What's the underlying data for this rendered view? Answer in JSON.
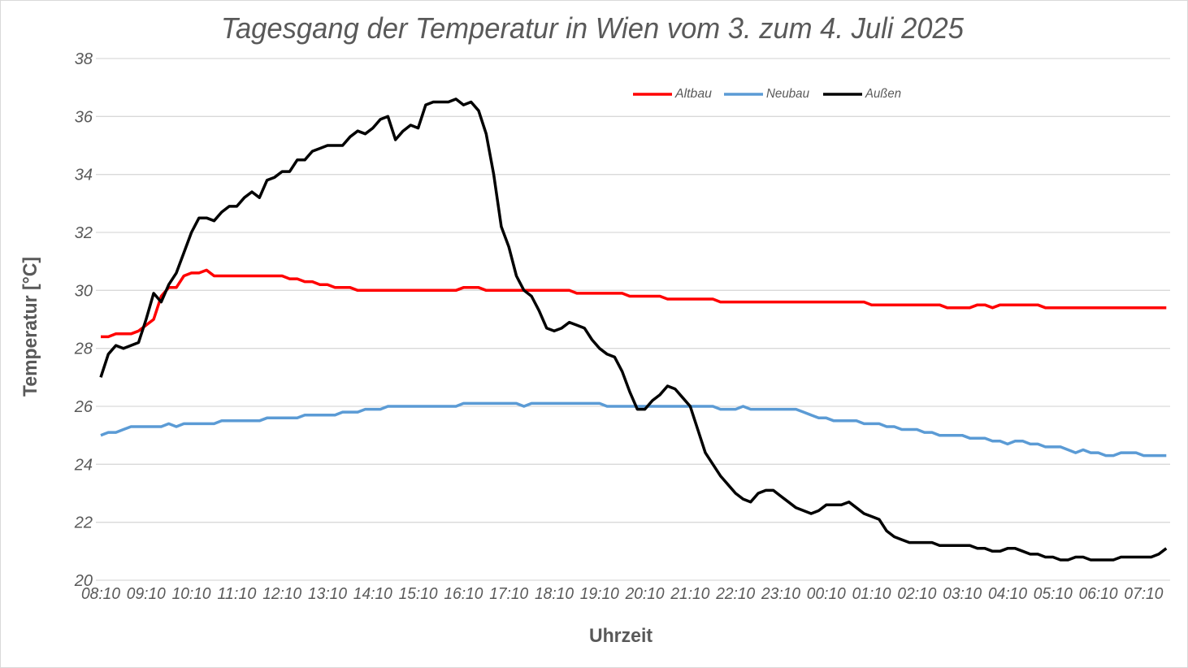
{
  "chart_data": {
    "type": "line",
    "title": "Tagesgang der Temperatur in Wien vom 3. zum 4. Juli 2025",
    "xlabel": "Uhrzeit",
    "ylabel": "Temperatur [°C]",
    "ylim": [
      20,
      38
    ],
    "yticks": [
      "20",
      "22",
      "24",
      "26",
      "28",
      "30",
      "32",
      "34",
      "36",
      "38"
    ],
    "xticks": [
      "08:10",
      "09:10",
      "10:10",
      "11:10",
      "12:10",
      "13:10",
      "14:10",
      "15:10",
      "16:10",
      "17:10",
      "18:10",
      "19:10",
      "20:10",
      "21:10",
      "22:10",
      "23:10",
      "00:10",
      "01:10",
      "02:10",
      "03:10",
      "04:10",
      "05:10",
      "06:10",
      "07:10"
    ],
    "grid": "horizontal",
    "legend_position": "top-right",
    "x": [
      "08:10",
      "08:20",
      "08:30",
      "08:40",
      "08:50",
      "09:00",
      "09:10",
      "09:20",
      "09:30",
      "09:40",
      "09:50",
      "10:00",
      "10:10",
      "10:20",
      "10:30",
      "10:40",
      "10:50",
      "11:00",
      "11:10",
      "11:20",
      "11:30",
      "11:40",
      "11:50",
      "12:00",
      "12:10",
      "12:20",
      "12:30",
      "12:40",
      "12:50",
      "13:00",
      "13:10",
      "13:20",
      "13:30",
      "13:40",
      "13:50",
      "14:00",
      "14:10",
      "14:20",
      "14:30",
      "14:40",
      "14:50",
      "15:00",
      "15:10",
      "15:20",
      "15:30",
      "15:40",
      "15:50",
      "16:00",
      "16:10",
      "16:20",
      "16:30",
      "16:40",
      "16:50",
      "17:00",
      "17:10",
      "17:20",
      "17:30",
      "17:40",
      "17:50",
      "18:00",
      "18:10",
      "18:20",
      "18:30",
      "18:40",
      "18:50",
      "19:00",
      "19:10",
      "19:20",
      "19:30",
      "19:40",
      "19:50",
      "20:00",
      "20:10",
      "20:20",
      "20:30",
      "20:40",
      "20:50",
      "21:00",
      "21:10",
      "21:20",
      "21:30",
      "21:40",
      "21:50",
      "22:00",
      "22:10",
      "22:20",
      "22:30",
      "22:40",
      "22:50",
      "23:00",
      "23:10",
      "23:20",
      "23:30",
      "23:40",
      "23:50",
      "00:00",
      "00:10",
      "00:20",
      "00:30",
      "00:40",
      "00:50",
      "01:00",
      "01:10",
      "01:20",
      "01:30",
      "01:40",
      "01:50",
      "02:00",
      "02:10",
      "02:20",
      "02:30",
      "02:40",
      "02:50",
      "03:00",
      "03:10",
      "03:20",
      "03:30",
      "03:40",
      "03:50",
      "04:00",
      "04:10",
      "04:20",
      "04:30",
      "04:40",
      "04:50",
      "05:00",
      "05:10",
      "05:20",
      "05:30",
      "05:40",
      "05:50",
      "06:00",
      "06:10",
      "06:20",
      "06:30",
      "06:40",
      "06:50",
      "07:00",
      "07:10",
      "07:20",
      "07:30",
      "07:40"
    ],
    "series": [
      {
        "name": "Altbau",
        "color": "#ff0000",
        "values": [
          28.4,
          28.4,
          28.5,
          28.5,
          28.5,
          28.6,
          28.8,
          29.0,
          29.8,
          30.1,
          30.1,
          30.5,
          30.6,
          30.6,
          30.7,
          30.5,
          30.5,
          30.5,
          30.5,
          30.5,
          30.5,
          30.5,
          30.5,
          30.5,
          30.5,
          30.4,
          30.4,
          30.3,
          30.3,
          30.2,
          30.2,
          30.1,
          30.1,
          30.1,
          30.0,
          30.0,
          30.0,
          30.0,
          30.0,
          30.0,
          30.0,
          30.0,
          30.0,
          30.0,
          30.0,
          30.0,
          30.0,
          30.0,
          30.1,
          30.1,
          30.1,
          30.0,
          30.0,
          30.0,
          30.0,
          30.0,
          30.0,
          30.0,
          30.0,
          30.0,
          30.0,
          30.0,
          30.0,
          29.9,
          29.9,
          29.9,
          29.9,
          29.9,
          29.9,
          29.9,
          29.8,
          29.8,
          29.8,
          29.8,
          29.8,
          29.7,
          29.7,
          29.7,
          29.7,
          29.7,
          29.7,
          29.7,
          29.6,
          29.6,
          29.6,
          29.6,
          29.6,
          29.6,
          29.6,
          29.6,
          29.6,
          29.6,
          29.6,
          29.6,
          29.6,
          29.6,
          29.6,
          29.6,
          29.6,
          29.6,
          29.6,
          29.6,
          29.5,
          29.5,
          29.5,
          29.5,
          29.5,
          29.5,
          29.5,
          29.5,
          29.5,
          29.5,
          29.4,
          29.4,
          29.4,
          29.4,
          29.5,
          29.5,
          29.4,
          29.5,
          29.5,
          29.5,
          29.5,
          29.5,
          29.5,
          29.4,
          29.4,
          29.4,
          29.4,
          29.4,
          29.4,
          29.4,
          29.4,
          29.4,
          29.4,
          29.4,
          29.4,
          29.4,
          29.4,
          29.4,
          29.4,
          29.4
        ]
      },
      {
        "name": "Neubau",
        "color": "#5b9bd5",
        "values": [
          25.0,
          25.1,
          25.1,
          25.2,
          25.3,
          25.3,
          25.3,
          25.3,
          25.3,
          25.4,
          25.3,
          25.4,
          25.4,
          25.4,
          25.4,
          25.4,
          25.5,
          25.5,
          25.5,
          25.5,
          25.5,
          25.5,
          25.6,
          25.6,
          25.6,
          25.6,
          25.6,
          25.7,
          25.7,
          25.7,
          25.7,
          25.7,
          25.8,
          25.8,
          25.8,
          25.9,
          25.9,
          25.9,
          26.0,
          26.0,
          26.0,
          26.0,
          26.0,
          26.0,
          26.0,
          26.0,
          26.0,
          26.0,
          26.1,
          26.1,
          26.1,
          26.1,
          26.1,
          26.1,
          26.1,
          26.1,
          26.0,
          26.1,
          26.1,
          26.1,
          26.1,
          26.1,
          26.1,
          26.1,
          26.1,
          26.1,
          26.1,
          26.0,
          26.0,
          26.0,
          26.0,
          26.0,
          26.0,
          26.0,
          26.0,
          26.0,
          26.0,
          26.0,
          26.0,
          26.0,
          26.0,
          26.0,
          25.9,
          25.9,
          25.9,
          26.0,
          25.9,
          25.9,
          25.9,
          25.9,
          25.9,
          25.9,
          25.9,
          25.8,
          25.7,
          25.6,
          25.6,
          25.5,
          25.5,
          25.5,
          25.5,
          25.4,
          25.4,
          25.4,
          25.3,
          25.3,
          25.2,
          25.2,
          25.2,
          25.1,
          25.1,
          25.0,
          25.0,
          25.0,
          25.0,
          24.9,
          24.9,
          24.9,
          24.8,
          24.8,
          24.7,
          24.8,
          24.8,
          24.7,
          24.7,
          24.6,
          24.6,
          24.6,
          24.5,
          24.4,
          24.5,
          24.4,
          24.4,
          24.3,
          24.3,
          24.4,
          24.4,
          24.4,
          24.3,
          24.3,
          24.3,
          24.3
        ]
      },
      {
        "name": "Außen",
        "color": "#000000",
        "values": [
          27.0,
          27.8,
          28.1,
          28.0,
          28.1,
          28.2,
          29.0,
          29.9,
          29.6,
          30.2,
          30.6,
          31.3,
          32.0,
          32.5,
          32.5,
          32.4,
          32.7,
          32.9,
          32.9,
          33.2,
          33.4,
          33.2,
          33.8,
          33.9,
          34.1,
          34.1,
          34.5,
          34.5,
          34.8,
          34.9,
          35.0,
          35.0,
          35.0,
          35.3,
          35.5,
          35.4,
          35.6,
          35.9,
          36.0,
          35.2,
          35.5,
          35.7,
          35.6,
          36.4,
          36.5,
          36.5,
          36.5,
          36.6,
          36.4,
          36.5,
          36.2,
          35.4,
          34.0,
          32.2,
          31.5,
          30.5,
          30.0,
          29.8,
          29.3,
          28.7,
          28.6,
          28.7,
          28.9,
          28.8,
          28.7,
          28.3,
          28.0,
          27.8,
          27.7,
          27.2,
          26.5,
          25.9,
          25.9,
          26.2,
          26.4,
          26.7,
          26.6,
          26.3,
          26.0,
          25.2,
          24.4,
          24.0,
          23.6,
          23.3,
          23.0,
          22.8,
          22.7,
          23.0,
          23.1,
          23.1,
          22.9,
          22.7,
          22.5,
          22.4,
          22.3,
          22.4,
          22.6,
          22.6,
          22.6,
          22.7,
          22.5,
          22.3,
          22.2,
          22.1,
          21.7,
          21.5,
          21.4,
          21.3,
          21.3,
          21.3,
          21.3,
          21.2,
          21.2,
          21.2,
          21.2,
          21.2,
          21.1,
          21.1,
          21.0,
          21.0,
          21.1,
          21.1,
          21.0,
          20.9,
          20.9,
          20.8,
          20.8,
          20.7,
          20.7,
          20.8,
          20.8,
          20.7,
          20.7,
          20.7,
          20.7,
          20.8,
          20.8,
          20.8,
          20.8,
          20.8,
          20.9,
          21.1
        ]
      }
    ]
  }
}
